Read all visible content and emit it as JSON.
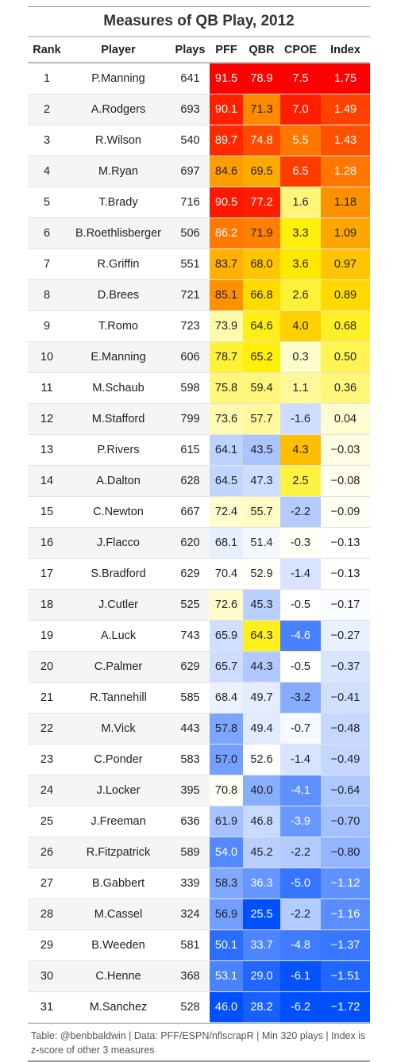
{
  "title": "Measures of QB Play, 2012",
  "columns": [
    "Rank",
    "Player",
    "Plays",
    "PFF",
    "QBR",
    "CPOE",
    "Index"
  ],
  "caption": "Table: @benbbaldwin | Data: PFF/ESPN/nflscrapR | Min 320 plays | Index is z-score of other 3 measures",
  "colors": {
    "high": "#ff0000",
    "mid_high": "#ffee00",
    "neutral": "#ffffff",
    "low": "#0050ff"
  },
  "chart_data": {
    "type": "table",
    "title": "Measures of QB Play, 2012",
    "columns": [
      "Rank",
      "Player",
      "Plays",
      "PFF",
      "QBR",
      "CPOE",
      "Index"
    ],
    "rows": [
      {
        "rank": "1",
        "player": "P.Manning",
        "plays": "641",
        "pff": "91.5",
        "qbr": "78.9",
        "cpoe": "7.5",
        "index": "1.75"
      },
      {
        "rank": "2",
        "player": "A.Rodgers",
        "plays": "693",
        "pff": "90.1",
        "qbr": "71.3",
        "cpoe": "7.0",
        "index": "1.49"
      },
      {
        "rank": "3",
        "player": "R.Wilson",
        "plays": "540",
        "pff": "89.7",
        "qbr": "74.8",
        "cpoe": "5.5",
        "index": "1.43"
      },
      {
        "rank": "4",
        "player": "M.Ryan",
        "plays": "697",
        "pff": "84.6",
        "qbr": "69.5",
        "cpoe": "6.5",
        "index": "1.28"
      },
      {
        "rank": "5",
        "player": "T.Brady",
        "plays": "716",
        "pff": "90.5",
        "qbr": "77.2",
        "cpoe": "1.6",
        "index": "1.18"
      },
      {
        "rank": "6",
        "player": "B.Roethlisberger",
        "plays": "506",
        "pff": "86.2",
        "qbr": "71.9",
        "cpoe": "3.3",
        "index": "1.09"
      },
      {
        "rank": "7",
        "player": "R.Griffin",
        "plays": "551",
        "pff": "83.7",
        "qbr": "68.0",
        "cpoe": "3.6",
        "index": "0.97"
      },
      {
        "rank": "8",
        "player": "D.Brees",
        "plays": "721",
        "pff": "85.1",
        "qbr": "66.8",
        "cpoe": "2.6",
        "index": "0.89"
      },
      {
        "rank": "9",
        "player": "T.Romo",
        "plays": "723",
        "pff": "73.9",
        "qbr": "64.6",
        "cpoe": "4.0",
        "index": "0.68"
      },
      {
        "rank": "10",
        "player": "E.Manning",
        "plays": "606",
        "pff": "78.7",
        "qbr": "65.2",
        "cpoe": "0.3",
        "index": "0.50"
      },
      {
        "rank": "11",
        "player": "M.Schaub",
        "plays": "598",
        "pff": "75.8",
        "qbr": "59.4",
        "cpoe": "1.1",
        "index": "0.36"
      },
      {
        "rank": "12",
        "player": "M.Stafford",
        "plays": "799",
        "pff": "73.6",
        "qbr": "57.7",
        "cpoe": "-1.6",
        "index": "0.04"
      },
      {
        "rank": "13",
        "player": "P.Rivers",
        "plays": "615",
        "pff": "64.1",
        "qbr": "43.5",
        "cpoe": "4.3",
        "index": "−0.03"
      },
      {
        "rank": "14",
        "player": "A.Dalton",
        "plays": "628",
        "pff": "64.5",
        "qbr": "47.3",
        "cpoe": "2.5",
        "index": "−0.08"
      },
      {
        "rank": "15",
        "player": "C.Newton",
        "plays": "667",
        "pff": "72.4",
        "qbr": "55.7",
        "cpoe": "-2.2",
        "index": "−0.09"
      },
      {
        "rank": "16",
        "player": "J.Flacco",
        "plays": "620",
        "pff": "68.1",
        "qbr": "51.4",
        "cpoe": "-0.3",
        "index": "−0.13"
      },
      {
        "rank": "17",
        "player": "S.Bradford",
        "plays": "629",
        "pff": "70.4",
        "qbr": "52.9",
        "cpoe": "-1.4",
        "index": "−0.13"
      },
      {
        "rank": "18",
        "player": "J.Cutler",
        "plays": "525",
        "pff": "72.6",
        "qbr": "45.3",
        "cpoe": "-0.5",
        "index": "−0.17"
      },
      {
        "rank": "19",
        "player": "A.Luck",
        "plays": "743",
        "pff": "65.9",
        "qbr": "64.3",
        "cpoe": "-4.6",
        "index": "−0.27"
      },
      {
        "rank": "20",
        "player": "C.Palmer",
        "plays": "629",
        "pff": "65.7",
        "qbr": "44.3",
        "cpoe": "-0.5",
        "index": "−0.37"
      },
      {
        "rank": "21",
        "player": "R.Tannehill",
        "plays": "585",
        "pff": "68.4",
        "qbr": "49.7",
        "cpoe": "-3.2",
        "index": "−0.41"
      },
      {
        "rank": "22",
        "player": "M.Vick",
        "plays": "443",
        "pff": "57.8",
        "qbr": "49.4",
        "cpoe": "-0.7",
        "index": "−0.48"
      },
      {
        "rank": "23",
        "player": "C.Ponder",
        "plays": "583",
        "pff": "57.0",
        "qbr": "52.6",
        "cpoe": "-1.4",
        "index": "−0.49"
      },
      {
        "rank": "24",
        "player": "J.Locker",
        "plays": "395",
        "pff": "70.8",
        "qbr": "40.0",
        "cpoe": "-4.1",
        "index": "−0.64"
      },
      {
        "rank": "25",
        "player": "J.Freeman",
        "plays": "636",
        "pff": "61.9",
        "qbr": "46.8",
        "cpoe": "-3.9",
        "index": "−0.70"
      },
      {
        "rank": "26",
        "player": "R.Fitzpatrick",
        "plays": "589",
        "pff": "54.0",
        "qbr": "45.2",
        "cpoe": "-2.2",
        "index": "−0.80"
      },
      {
        "rank": "27",
        "player": "B.Gabbert",
        "plays": "339",
        "pff": "58.3",
        "qbr": "36.3",
        "cpoe": "-5.0",
        "index": "−1.12"
      },
      {
        "rank": "28",
        "player": "M.Cassel",
        "plays": "324",
        "pff": "56.9",
        "qbr": "25.5",
        "cpoe": "-2.2",
        "index": "−1.16"
      },
      {
        "rank": "29",
        "player": "B.Weeden",
        "plays": "581",
        "pff": "50.1",
        "qbr": "33.7",
        "cpoe": "-4.8",
        "index": "−1.37"
      },
      {
        "rank": "30",
        "player": "C.Henne",
        "plays": "368",
        "pff": "53.1",
        "qbr": "29.0",
        "cpoe": "-6.1",
        "index": "−1.51"
      },
      {
        "rank": "31",
        "player": "M.Sanchez",
        "plays": "528",
        "pff": "46.0",
        "qbr": "28.2",
        "cpoe": "-6.2",
        "index": "−1.72"
      }
    ]
  }
}
